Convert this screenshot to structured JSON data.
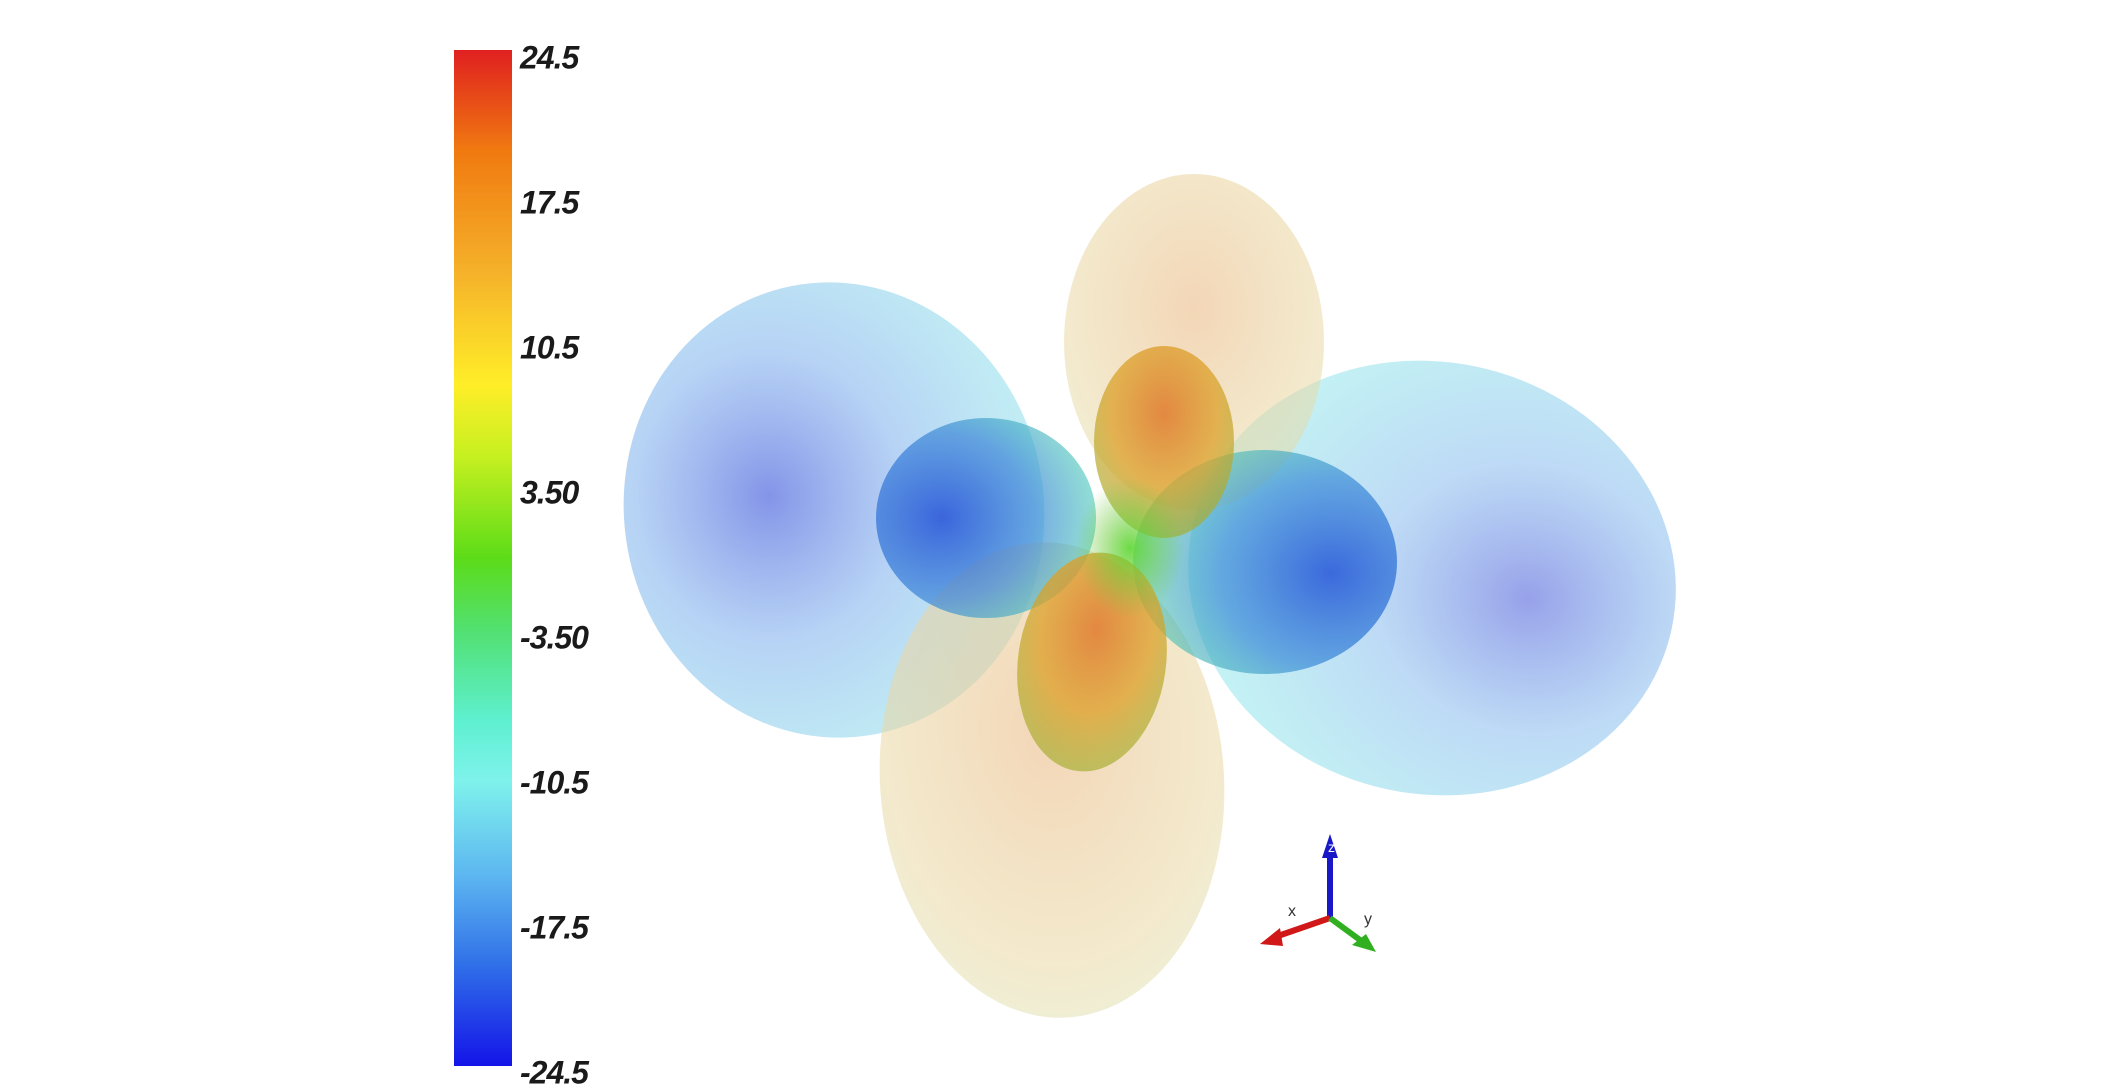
{
  "colorbar": {
    "min": -24.5,
    "max": 24.5,
    "ticks": [
      "24.5",
      "17.5",
      "10.5",
      "3.50",
      "-3.50",
      "-10.5",
      "-17.5",
      "-24.5"
    ],
    "colors": [
      "#e02020",
      "#f07a10",
      "#f5b22a",
      "#ffee28",
      "#5cdc18",
      "#7ff2ec",
      "#3070e8",
      "#1414e8"
    ]
  },
  "axes_triad": {
    "labels": [
      "x",
      "y",
      "z"
    ],
    "colors": {
      "x": "#d01818",
      "y": "#30b020",
      "z": "#1818c8"
    }
  },
  "scene": {
    "description_colors": {
      "negative_lobes": "#6aa8e8",
      "positive_lobes": "#e8c890"
    }
  }
}
